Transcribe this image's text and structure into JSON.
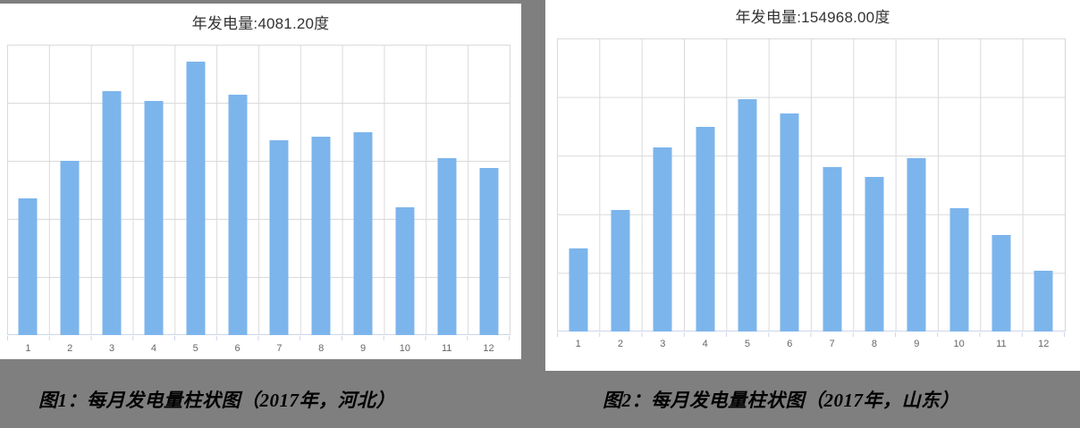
{
  "chart_data": [
    {
      "type": "bar",
      "title": "年发电量:4081.20度",
      "caption": "图1：每月发电量柱状图（2017年，河北）",
      "categories": [
        "1",
        "2",
        "3",
        "4",
        "5",
        "6",
        "7",
        "8",
        "9",
        "10",
        "11",
        "12"
      ],
      "values": [
        235,
        300,
        420,
        403,
        471,
        414,
        335,
        341,
        349,
        220,
        305,
        288.2
      ],
      "xlabel": "",
      "ylabel": "",
      "ylim": [
        0,
        500
      ],
      "grid": true,
      "legend": "none",
      "bar_color": "#7cb5ec"
    },
    {
      "type": "bar",
      "title": "年发电量:154968.00度",
      "caption": "图2：每月发电量柱状图（2017年，山东）",
      "categories": [
        "1",
        "2",
        "3",
        "4",
        "5",
        "6",
        "7",
        "8",
        "9",
        "10",
        "11",
        "12"
      ],
      "values": [
        7100,
        10350,
        15700,
        17450,
        19800,
        18600,
        14050,
        13150,
        14800,
        10500,
        8250,
        5218
      ],
      "xlabel": "",
      "ylabel": "",
      "ylim": [
        0,
        25000
      ],
      "grid": true,
      "legend": "none",
      "bar_color": "#7cb5ec"
    }
  ],
  "colors": {
    "background": "#7f7f7f",
    "panel": "#ffffff",
    "bar": "#7cb5ec",
    "gridline": "#dadada",
    "axis": "#ccd6eb",
    "title_text": "#333333",
    "label_text": "#666666",
    "caption_text": "#000000"
  }
}
